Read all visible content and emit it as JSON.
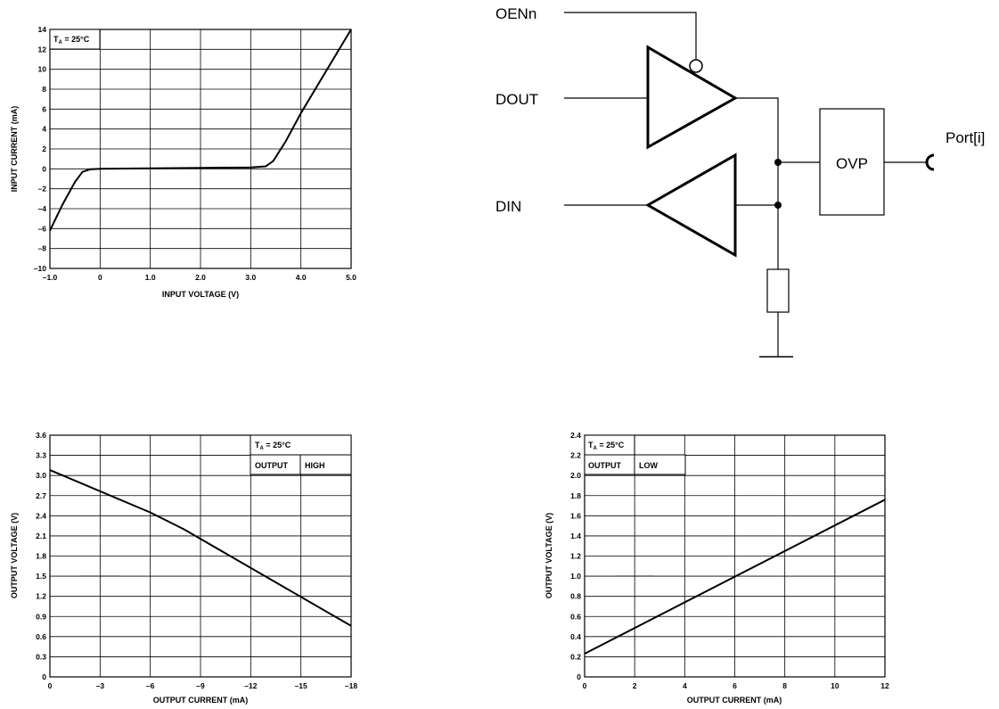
{
  "charts": [
    {
      "type": "line",
      "xlabel": "INPUT VOLTAGE (V)",
      "ylabel": "INPUT CURRENT (mA)",
      "condition": "T_A = 25°C",
      "xlim": [
        -1.0,
        5.0
      ],
      "ylim": [
        -10,
        14
      ],
      "xticks": [
        -1.0,
        0,
        1.0,
        2.0,
        3.0,
        4.0,
        5.0
      ],
      "xtick_labels": [
        "–1.0",
        "0",
        "1.0",
        "2.0",
        "3.0",
        "4.0",
        "5.0"
      ],
      "yticks": [
        14,
        12,
        10,
        8,
        6,
        4,
        2,
        0,
        -2,
        -4,
        -6,
        -8,
        -10
      ],
      "ytick_labels": [
        "14",
        "12",
        "10",
        "8",
        "6",
        "4",
        "2",
        "0",
        "–2",
        "–4",
        "–6",
        "–8",
        "–10"
      ],
      "series": [
        {
          "x": [
            -1.0,
            -0.75,
            -0.5,
            -0.35,
            -0.2,
            0,
            1.0,
            2.0,
            3.0,
            3.3,
            3.45,
            3.7,
            4.0,
            4.5,
            5.0
          ],
          "y": [
            -6.2,
            -3.6,
            -1.3,
            -0.3,
            -0.05,
            0,
            0.05,
            0.1,
            0.15,
            0.25,
            0.8,
            2.8,
            5.6,
            9.8,
            14.0
          ]
        }
      ]
    },
    {
      "type": "line",
      "xlabel": "OUTPUT CURRENT (mA)",
      "ylabel": "OUTPUT VOLTAGE  (V)",
      "condition": "T_A = 25°C",
      "condition2": [
        "OUTPUT",
        "HIGH"
      ],
      "xlim": [
        0,
        -18
      ],
      "ylim": [
        0,
        3.6
      ],
      "xticks": [
        0,
        -3,
        -6,
        -9,
        -12,
        -15,
        -18
      ],
      "xtick_labels": [
        "0",
        "–3",
        "–6",
        "–9",
        "–12",
        "–15",
        "–18"
      ],
      "yticks": [
        3.6,
        3.3,
        3.0,
        2.7,
        2.4,
        2.1,
        1.8,
        1.5,
        1.2,
        0.9,
        0.6,
        0.3,
        0
      ],
      "ytick_labels": [
        "3.6",
        "3.3",
        "3.0",
        "2.7",
        "2.4",
        "2.1",
        "1.8",
        "1.5",
        "1.2",
        "0.9",
        "0.6",
        "0.3",
        "0"
      ],
      "series": [
        {
          "x": [
            0,
            -6,
            -8,
            -18
          ],
          "y": [
            3.08,
            2.45,
            2.2,
            0.76
          ]
        }
      ]
    },
    {
      "type": "line",
      "xlabel": "OUTPUT CURRENT (mA)",
      "ylabel": "OUTPUT VOLTAGE  (V)",
      "condition": "T_A = 25°C",
      "condition2": [
        "OUTPUT",
        "LOW"
      ],
      "xlim": [
        0,
        12
      ],
      "ylim": [
        0,
        2.4
      ],
      "xticks": [
        0,
        2,
        4,
        6,
        8,
        10,
        12
      ],
      "xtick_labels": [
        "0",
        "2",
        "4",
        "6",
        "8",
        "10",
        "12"
      ],
      "yticks": [
        2.4,
        2.2,
        2.0,
        1.8,
        1.6,
        1.4,
        1.2,
        1.0,
        0.8,
        0.6,
        0.4,
        0.2,
        0
      ],
      "ytick_labels": [
        "2.4",
        "2.2",
        "2.0",
        "1.8",
        "1.6",
        "1.4",
        "1.2",
        "1.0",
        "0.8",
        "0.6",
        "0.4",
        "0.2",
        "0"
      ],
      "series": [
        {
          "x": [
            0,
            12
          ],
          "y": [
            0.23,
            1.76
          ]
        }
      ]
    }
  ],
  "diagram": {
    "signals": {
      "oen": "OENn",
      "dout": "DOUT",
      "din": "DIN",
      "port": "Port[i]"
    },
    "ovp_label": "OVP"
  }
}
